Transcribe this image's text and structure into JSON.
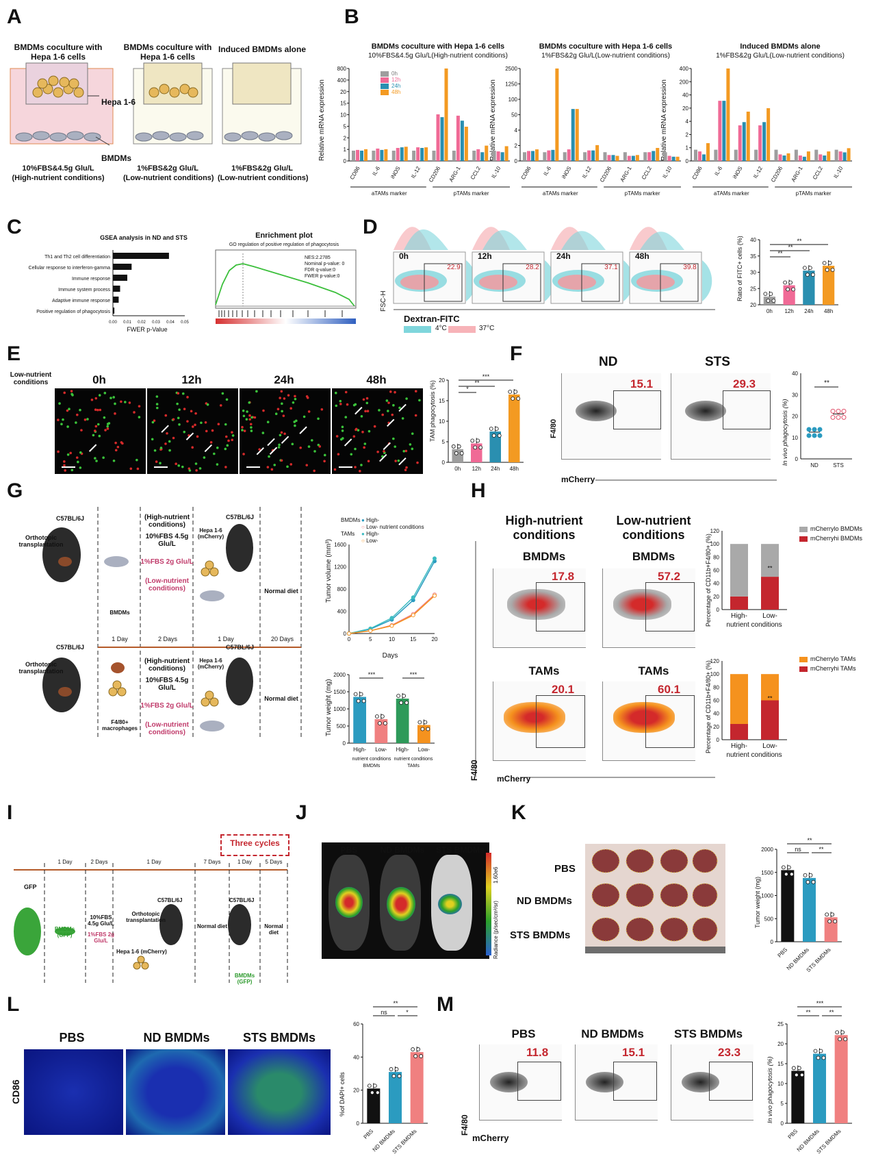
{
  "panels": {
    "A": "A",
    "B": "B",
    "C": "C",
    "D": "D",
    "E": "E",
    "F": "F",
    "G": "G",
    "H": "H",
    "I": "I",
    "J": "J",
    "K": "K",
    "L": "L",
    "M": "M"
  },
  "colors": {
    "c0h": "#9e9e9e",
    "c12h": "#f06a96",
    "c24h": "#2a8fb0",
    "c48h": "#f39a22",
    "blue": "#2b9bc0",
    "pink": "#f08080",
    "black": "#111111",
    "red": "#c4262e",
    "orange": "#f5921e",
    "grey": "#a9a9a9",
    "teal": "#3dbcc2"
  },
  "A": {
    "t1": "BMDMs coculture with Hepa 1-6 cells",
    "t2": "BMDMs coculture with Hepa 1-6 cells",
    "t3": "Induced BMDMs alone",
    "hepa": "Hepa 1-6",
    "bmdms": "BMDMs",
    "c1a": "10%FBS&4.5g Glu/L",
    "c1b": "(High-nutrient conditions)",
    "c2a": "1%FBS&2g Glu/L",
    "c2b": "(Low-nutrient conditions)",
    "c3a": "1%FBS&2g Glu/L",
    "c3b": "(Low-nutrient conditions)"
  },
  "B": {
    "t1a": "BMDMs coculture with Hepa 1-6 cells",
    "t1b": "10%FBS&4.5g Glu/L(High-nutrient conditions)",
    "t2a": "BMDMs coculture with Hepa 1-6 cells",
    "t2b": "1%FBS&2g Glu/L(Low-nutrient conditions)",
    "t3a": "Induced BMDMs alone",
    "t3b": "1%FBS&2g Glu/L(Low-nutrient conditions)",
    "ylabel": "Relative mRNA expression",
    "genes": [
      "CD86",
      "IL-6",
      "iNOS",
      "IL-12",
      "CD206",
      "ARG-1",
      "CCL2",
      "IL-10"
    ],
    "aTAMs": "aTAMs marker",
    "pTAMs": "pTAMs marker",
    "legend": [
      "0h",
      "12h",
      "24h",
      "48h"
    ],
    "yticks1": [
      "800",
      "400",
      "20",
      "15",
      "10",
      "5",
      "2",
      "1",
      "0"
    ],
    "yticks2": [
      "2500",
      "1250",
      "100",
      "50",
      "4",
      "2",
      "0"
    ],
    "yticks3": [
      "400",
      "200",
      "40",
      "20",
      "4",
      "2",
      "1",
      "0"
    ]
  },
  "C": {
    "gsea_title": "GSEA analysis in ND and STS",
    "terms": [
      "Th1 and Th2 cell differentiation",
      "Cellular response to interferon-gamma",
      "Immune response",
      "Immune system process",
      "Adaptive immune response",
      "Positive regulation of phagocytosis"
    ],
    "xticks": [
      "0.00",
      "0.01",
      "0.02",
      "0.03",
      "0.04",
      "0.05"
    ],
    "xlabel": "FWER p-Value",
    "enrich_title": "Enrichment plot",
    "enrich_sub": "GO regulation of positive regulation of phagocytosis",
    "stats": [
      "NES:2.2785",
      "Nominal p-value: 0",
      "FDR q-value:0",
      "FWER p-value:0"
    ]
  },
  "D": {
    "times": [
      "0h",
      "12h",
      "24h",
      "48h"
    ],
    "gates": [
      "22.9",
      "28.2",
      "37.1",
      "39.8"
    ],
    "ylabel": "FSC-H",
    "xlabel": "Dextran-FITC",
    "leg4": "4°C",
    "leg37": "37°C",
    "chart_ylabel": "Ratio of FITC+ cells (%)",
    "yticks": [
      "40",
      "35",
      "30",
      "25",
      "20"
    ],
    "xcats": [
      "0h",
      "12h",
      "24h",
      "48h"
    ]
  },
  "E": {
    "cond": "Low-nutrient conditions",
    "times": [
      "0h",
      "12h",
      "24h",
      "48h"
    ],
    "ylabel": "TAM phagocytosis (%)",
    "yticks": [
      "20",
      "15",
      "10",
      "5",
      "0"
    ],
    "xcats": [
      "0h",
      "12h",
      "24h",
      "48h"
    ],
    "sig": [
      "*",
      "**",
      "***"
    ]
  },
  "F": {
    "nd": "ND",
    "sts": "STS",
    "v1": "15.1",
    "v2": "29.3",
    "ylabel": "F4/80",
    "xlabel": "mCherry",
    "chart_ylabel": "In vivo phagocytosis (%)",
    "yticks": [
      "40",
      "30",
      "20",
      "10",
      "0"
    ],
    "xcats": [
      "ND",
      "STS"
    ],
    "sig": "**"
  },
  "G": {
    "mouse": "C57BL/6J",
    "ortho": "Orthotopic transplantation",
    "high": "(High-nutrient conditions)",
    "high_media": "10%FBS 4.5g Glu/L",
    "low_media": "1%FBS 2g Glu/L",
    "low": "(Low-nutrient conditions)",
    "hepa": "Hepa 1-6 (mCherry)",
    "bmdms": "BMDMs",
    "f480": "F4/80+ macrophages",
    "diet": "Normal diet",
    "days": [
      "1 Day",
      "2 Days",
      "1 Day",
      "20 Days"
    ],
    "legend_bm": "BMDMs",
    "legend_tam": "TAMs",
    "leg_items": [
      "High-",
      "Low-",
      "High-",
      "Low-"
    ],
    "legend_cond": "nutrient conditions",
    "vol_ylabel": "Tumor volume (mm³)",
    "vol_xlabel": "Days",
    "vol_yticks": [
      "1600",
      "1200",
      "800",
      "400",
      "0"
    ],
    "vol_xticks": [
      "0",
      "5",
      "10",
      "15",
      "20"
    ],
    "wt_ylabel": "Tumor weight (mg)",
    "wt_yticks": [
      "2000",
      "1500",
      "1000",
      "500",
      "0"
    ],
    "wt_xcats": [
      "High-",
      "Low-",
      "High-",
      "Low-"
    ],
    "wt_group": [
      "nutrient conditions",
      "nutrient conditions"
    ],
    "wt_sub": [
      "BMDMs",
      "TAMs"
    ],
    "sig": [
      "***",
      "***"
    ]
  },
  "H": {
    "high": "High-nutrient conditions",
    "low": "Low-nutrient conditions",
    "bmdms": "BMDMs",
    "tams": "TAMs",
    "v": [
      "17.8",
      "57.2",
      "20.1",
      "60.1"
    ],
    "ylabel": "F4/80",
    "xlabel": "mCherry",
    "leg1": [
      "mCherrylo BMDMs",
      "mCherryhi BMDMs"
    ],
    "leg2": [
      "mCherrylo TAMs",
      "mCherryhi TAMs"
    ],
    "ylab1": "Percentage of CD11b+F4/80+ (%)",
    "ylab2": "Percentage of CD11b+F4/80+ (%)",
    "yticks": [
      "120",
      "100",
      "80",
      "60",
      "40",
      "20",
      "0"
    ],
    "xcats": [
      "High-",
      "Low-"
    ],
    "xgroup": "nutrient conditions",
    "sig": "**"
  },
  "I": {
    "three": "Three cycles",
    "gfp": "GFP",
    "bmdm_gfp": "BMDMs (GFP)",
    "media1": "10%FBS 4.5g Glu/L",
    "media2": "1%FBS 2g Glu/L",
    "ortho": "Orthotopic transplantation",
    "mouse": "C57BL/6J",
    "hepa": "Hepa 1-6 (mCherry)",
    "diet": "Normal diet",
    "days": [
      "1 Day",
      "2 Days",
      "1 Day",
      "7 Days",
      "1 Day",
      "5 Days"
    ]
  },
  "J": {
    "labels": [
      "PBS",
      "ND BMDMs",
      "STS BMDMs"
    ],
    "scale_top": "1.60e6",
    "scale_bot": "1.16e5",
    "scale_label": "Radiance (p/sec/cm²/sr)"
  },
  "K": {
    "rows": [
      "PBS",
      "ND BMDMs",
      "STS BMDMs"
    ],
    "ylabel": "Tumor weight (mg)",
    "yticks": [
      "2000",
      "1500",
      "1000",
      "500",
      "0"
    ],
    "xcats": [
      "PBS",
      "ND BMDMs",
      "STS BMDMs"
    ],
    "sig": [
      "**",
      "ns",
      "**"
    ]
  },
  "L": {
    "labels": [
      "PBS",
      "ND BMDMs",
      "STS BMDMs"
    ],
    "side": "CD86",
    "ylabel": "%of DAPI+ cells",
    "yticks": [
      "60",
      "40",
      "20",
      "0"
    ],
    "xcats": [
      "PBS",
      "ND BMDMs",
      "STS BMDMs"
    ],
    "sig": [
      "**",
      "ns",
      "*"
    ]
  },
  "M": {
    "labels": [
      "PBS",
      "ND BMDMs",
      "STS BMDMs"
    ],
    "v": [
      "11.8",
      "15.1",
      "23.3"
    ],
    "ylabel": "F4/80",
    "xlabel": "mCherry",
    "chart_ylabel": "In vivo phagocytosis (%)",
    "yticks": [
      "25",
      "20",
      "15",
      "10",
      "5",
      "0"
    ],
    "xcats": [
      "PBS",
      "ND BMDMs",
      "STS BMDMs"
    ],
    "sig": [
      "***",
      "**",
      "**"
    ]
  },
  "chart_data": [
    {
      "panel": "B1",
      "type": "bar",
      "title": "BMDMs coculture with Hepa 1-6 cells 10%FBS&4.5g Glu/L(High-nutrient conditions)",
      "ylabel": "Relative mRNA expression",
      "categories": [
        "CD86",
        "IL-6",
        "iNOS",
        "IL-12",
        "CD206",
        "ARG-1",
        "CCL2",
        "IL-10"
      ],
      "series": [
        {
          "name": "0h",
          "values": [
            1,
            1,
            1,
            1,
            1,
            1,
            1,
            1
          ]
        },
        {
          "name": "12h",
          "values": [
            1.1,
            1.3,
            1.4,
            1.5,
            22,
            20,
            1.2,
            0.9
          ]
        },
        {
          "name": "24h",
          "values": [
            1.0,
            1.1,
            1.5,
            1.4,
            18,
            14,
            0.8,
            0.8
          ]
        },
        {
          "name": "48h",
          "values": [
            1.2,
            1.2,
            1.6,
            1.5,
            500,
            9,
            1.8,
            1.7
          ]
        }
      ]
    },
    {
      "panel": "B2",
      "type": "bar",
      "title": "BMDMs coculture with Hepa 1-6 cells 1%FBS&2g Glu/L(Low-nutrient conditions)",
      "ylabel": "Relative mRNA expression",
      "categories": [
        "CD86",
        "IL-6",
        "iNOS",
        "IL-12",
        "CD206",
        "ARG-1",
        "CCL2",
        "IL-10"
      ],
      "series": [
        {
          "name": "0h",
          "values": [
            1,
            1,
            1,
            1,
            1,
            1,
            1,
            1
          ]
        },
        {
          "name": "12h",
          "values": [
            1.2,
            1.3,
            1.5,
            1.3,
            0.6,
            0.5,
            1.0,
            0.5
          ]
        },
        {
          "name": "24h",
          "values": [
            1.2,
            1.4,
            60,
            1.3,
            0.6,
            0.5,
            1.2,
            0.4
          ]
        },
        {
          "name": "48h",
          "values": [
            1.5,
            1500,
            60,
            2.5,
            0.5,
            0.6,
            1.8,
            0.4
          ]
        }
      ]
    },
    {
      "panel": "B3",
      "type": "bar",
      "title": "Induced BMDMs alone 1%FBS&2g Glu/L(Low-nutrient conditions)",
      "ylabel": "Relative mRNA expression",
      "categories": [
        "CD86",
        "IL-6",
        "iNOS",
        "IL-12",
        "CD206",
        "ARG-1",
        "CCL2",
        "IL-10"
      ],
      "series": [
        {
          "name": "0h",
          "values": [
            1,
            1,
            1,
            1,
            1,
            1,
            1,
            1
          ]
        },
        {
          "name": "12h",
          "values": [
            0.8,
            40,
            8,
            8,
            0.5,
            0.4,
            0.5,
            0.8
          ]
        },
        {
          "name": "24h",
          "values": [
            0.5,
            40,
            10,
            10,
            0.4,
            0.3,
            0.4,
            0.7
          ]
        },
        {
          "name": "48h",
          "values": [
            2,
            300,
            20,
            25,
            0.6,
            0.8,
            0.8,
            1.2
          ]
        }
      ]
    },
    {
      "panel": "C",
      "type": "bar",
      "title": "GSEA analysis in ND and STS",
      "xlabel": "FWER p-Value",
      "categories": [
        "Th1 and Th2 cell differentiation",
        "Cellular response to interferon-gamma",
        "Immune response",
        "Immune system process",
        "Adaptive immune response",
        "Positive regulation of phagocytosis"
      ],
      "values": [
        0.039,
        0.013,
        0.01,
        0.005,
        0.004,
        0.001
      ]
    },
    {
      "panel": "D",
      "type": "bar",
      "ylabel": "Ratio of FITC+ cells (%)",
      "categories": [
        "0h",
        "12h",
        "24h",
        "48h"
      ],
      "values": [
        22.5,
        26,
        30.5,
        32
      ],
      "ylim": [
        20,
        40
      ]
    },
    {
      "panel": "E",
      "type": "bar",
      "ylabel": "TAM phagocytosis (%)",
      "categories": [
        "0h",
        "12h",
        "24h",
        "48h"
      ],
      "values": [
        3.2,
        4.6,
        7.5,
        16.5
      ],
      "ylim": [
        0,
        20
      ]
    },
    {
      "panel": "F",
      "type": "scatter",
      "ylabel": "In vivo phagocytosis (%)",
      "categories": [
        "ND",
        "STS"
      ],
      "values": [
        12.5,
        21
      ],
      "ylim": [
        0,
        40
      ]
    },
    {
      "panel": "G-volume",
      "type": "line",
      "xlabel": "Days",
      "ylabel": "Tumor volume (mm³)",
      "x": [
        0,
        5,
        10,
        15,
        20
      ],
      "series": [
        {
          "name": "High- BMDMs",
          "values": [
            0,
            80,
            250,
            600,
            1300
          ]
        },
        {
          "name": "Low- BMDMs",
          "values": [
            0,
            50,
            150,
            350,
            700
          ]
        },
        {
          "name": "High- TAMs",
          "values": [
            0,
            90,
            280,
            650,
            1350
          ]
        },
        {
          "name": "Low- TAMs",
          "values": [
            0,
            50,
            140,
            330,
            680
          ]
        }
      ],
      "ylim": [
        0,
        1600
      ]
    },
    {
      "panel": "G-weight",
      "type": "bar",
      "ylabel": "Tumor weight (mg)",
      "categories": [
        "High-",
        "Low-",
        "High-",
        "Low-"
      ],
      "values": [
        1350,
        700,
        1300,
        530
      ],
      "ylim": [
        0,
        2000
      ]
    },
    {
      "panel": "H-BMDMs",
      "type": "bar",
      "ylabel": "Percentage of CD11b+F4/80+ (%)",
      "categories": [
        "High-",
        "Low-"
      ],
      "series": [
        {
          "name": "mCherryhi BMDMs",
          "values": [
            20,
            50
          ]
        },
        {
          "name": "mCherrylo BMDMs",
          "values": [
            80,
            50
          ]
        }
      ],
      "ylim": [
        0,
        120
      ]
    },
    {
      "panel": "H-TAMs",
      "type": "bar",
      "ylabel": "Percentage of CD11b+F4/80+ (%)",
      "categories": [
        "High-",
        "Low-"
      ],
      "series": [
        {
          "name": "mCherryhi TAMs",
          "values": [
            24,
            60
          ]
        },
        {
          "name": "mCherrylo TAMs",
          "values": [
            76,
            40
          ]
        }
      ],
      "ylim": [
        0,
        120
      ]
    },
    {
      "panel": "K",
      "type": "bar",
      "ylabel": "Tumor weight (mg)",
      "categories": [
        "PBS",
        "ND BMDMs",
        "STS BMDMs"
      ],
      "values": [
        1550,
        1380,
        530
      ],
      "ylim": [
        0,
        2000
      ]
    },
    {
      "panel": "L",
      "type": "bar",
      "ylabel": "%of DAPI+ cells",
      "categories": [
        "PBS",
        "ND BMDMs",
        "STS BMDMs"
      ],
      "values": [
        21,
        31,
        43
      ],
      "ylim": [
        0,
        60
      ]
    },
    {
      "panel": "M",
      "type": "bar",
      "ylabel": "In vivo phagocytosis (%)",
      "categories": [
        "PBS",
        "ND BMDMs",
        "STS BMDMs"
      ],
      "values": [
        13.2,
        17.5,
        22.2
      ],
      "ylim": [
        0,
        25
      ]
    }
  ]
}
